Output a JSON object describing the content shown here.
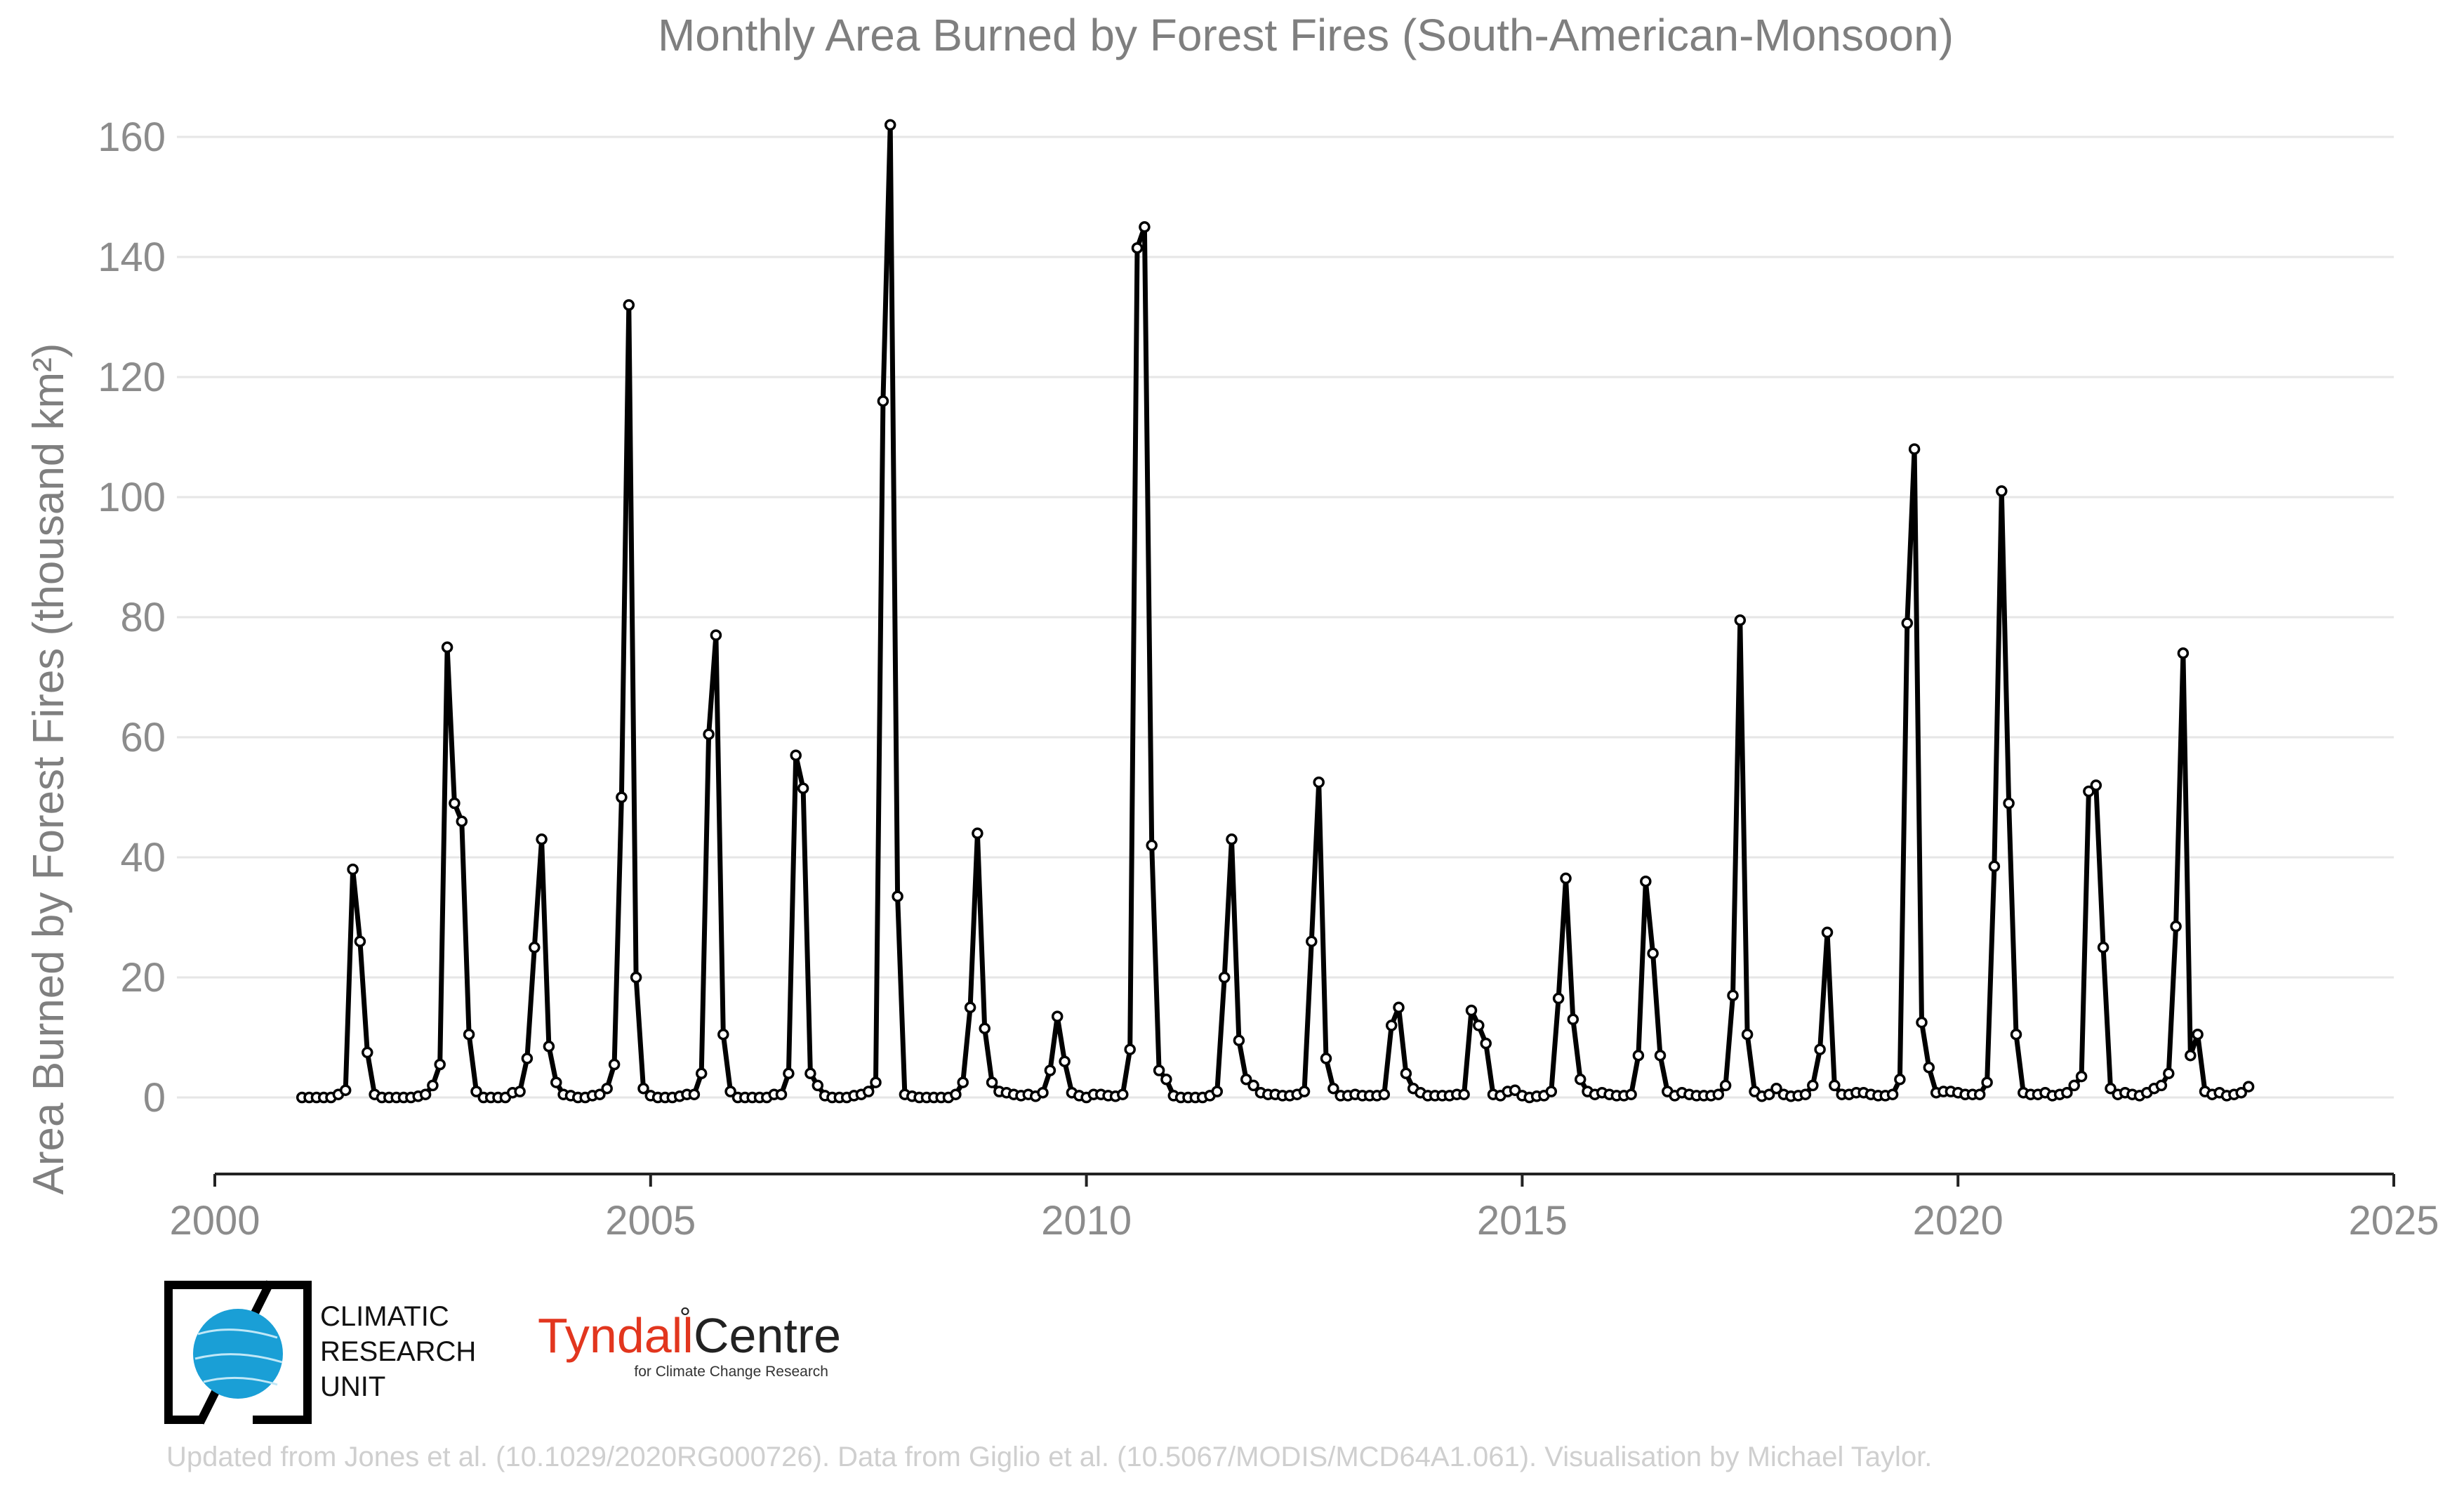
{
  "chart_data": {
    "type": "line",
    "title": "Monthly Area Burned by Forest Fires (South-American-Monsoon)",
    "ylabel": "Area Burned by Forest Fires (thousand km²)",
    "xlabel": "",
    "xlim": [
      2000,
      2025
    ],
    "ylim": [
      -12,
      170
    ],
    "xticks": [
      "2000",
      "2005",
      "2010",
      "2015",
      "2020",
      "2025"
    ],
    "yticks": [
      "0",
      "20",
      "40",
      "60",
      "80",
      "100",
      "120",
      "140",
      "160"
    ],
    "grid": true,
    "start": "2001-01",
    "frequency": "monthly",
    "series": [
      {
        "values": [
          0,
          0,
          0,
          0,
          0,
          0.5,
          1.2,
          38,
          26,
          7.5,
          0.5,
          0,
          0,
          0,
          0,
          0,
          0.2,
          0.5,
          2,
          5.5,
          75,
          49,
          46,
          10.5,
          1,
          0,
          0,
          0,
          0,
          0.8,
          1,
          6.5,
          25,
          43,
          8.5,
          2.5,
          0.5,
          0.3,
          0,
          0,
          0.3,
          0.5,
          1.5,
          5.5,
          50,
          132,
          20,
          1.5,
          0.3,
          0,
          0,
          0,
          0.2,
          0.5,
          0.5,
          4,
          60.5,
          77,
          10.5,
          1,
          0,
          0,
          0,
          0,
          0,
          0.5,
          0.5,
          4,
          57,
          51.5,
          4,
          2,
          0.3,
          0,
          0,
          0,
          0.3,
          0.5,
          1,
          2.5,
          116,
          162,
          33.5,
          0.5,
          0.2,
          0,
          0,
          0,
          0,
          0,
          0.5,
          2.5,
          15,
          44,
          11.5,
          2.5,
          1,
          0.8,
          0.5,
          0.3,
          0.5,
          0.2,
          0.8,
          4.5,
          13.5,
          6,
          0.8,
          0.3,
          0,
          0.5,
          0.5,
          0.3,
          0.2,
          0.5,
          8,
          141.5,
          145,
          42,
          4.5,
          3,
          0.3,
          0,
          0,
          0,
          0,
          0.3,
          1,
          20,
          43,
          9.5,
          3,
          2,
          0.8,
          0.5,
          0.5,
          0.3,
          0.3,
          0.5,
          1,
          26,
          52.5,
          6.5,
          1.5,
          0.3,
          0.3,
          0.5,
          0.3,
          0.3,
          0.3,
          0.5,
          12,
          15,
          4,
          1.5,
          0.8,
          0.3,
          0.3,
          0.3,
          0.3,
          0.5,
          0.5,
          14.5,
          12,
          9,
          0.5,
          0.3,
          1,
          1.2,
          0.3,
          0,
          0.2,
          0.3,
          1,
          16.5,
          36.5,
          13,
          3,
          1,
          0.5,
          0.8,
          0.5,
          0.3,
          0.3,
          0.5,
          7,
          36,
          24,
          7,
          1,
          0.3,
          0.8,
          0.5,
          0.3,
          0.3,
          0.3,
          0.5,
          2,
          17,
          79.5,
          10.5,
          1,
          0.2,
          0.5,
          1.5,
          0.5,
          0.2,
          0.3,
          0.5,
          2,
          8,
          27.5,
          2,
          0.5,
          0.5,
          0.8,
          0.8,
          0.5,
          0.3,
          0.3,
          0.5,
          3,
          79,
          108,
          12.5,
          5,
          0.8,
          1,
          1,
          0.8,
          0.5,
          0.5,
          0.5,
          2.5,
          38.5,
          101,
          49,
          10.5,
          0.8,
          0.5,
          0.5,
          0.8,
          0.3,
          0.5,
          0.8,
          2,
          3.5,
          51,
          52,
          25,
          1.5,
          0.5,
          0.8,
          0.5,
          0.3,
          0.8,
          1.5,
          2,
          4,
          28.5,
          74,
          7,
          10.5,
          1,
          0.5,
          0.8,
          0.3,
          0.5,
          0.8,
          1.8
        ]
      }
    ]
  },
  "logos": {
    "cru_lines": [
      "CLIMATIC",
      "RESEARCH",
      "UNIT"
    ],
    "tyndall_name": "Tyndall",
    "tyndall_degree": "°",
    "tyndall_centre": "Centre",
    "tyndall_sub": "for Climate Change Research"
  },
  "footer": "Updated from Jones et al. (10.1029/2020RG000726). Data from Giglio et al. (10.5067/MODIS/MCD64A1.061). Visualisation by Michael Taylor.",
  "colors": {
    "series": "#000000",
    "marker_fill": "#ffffff",
    "grid": "#e6e6e6",
    "text": "#7f7f7f",
    "cru_blue": "#1a9fd6",
    "tyndall_red": "#e2361e",
    "footer": "#cfcfcf"
  }
}
